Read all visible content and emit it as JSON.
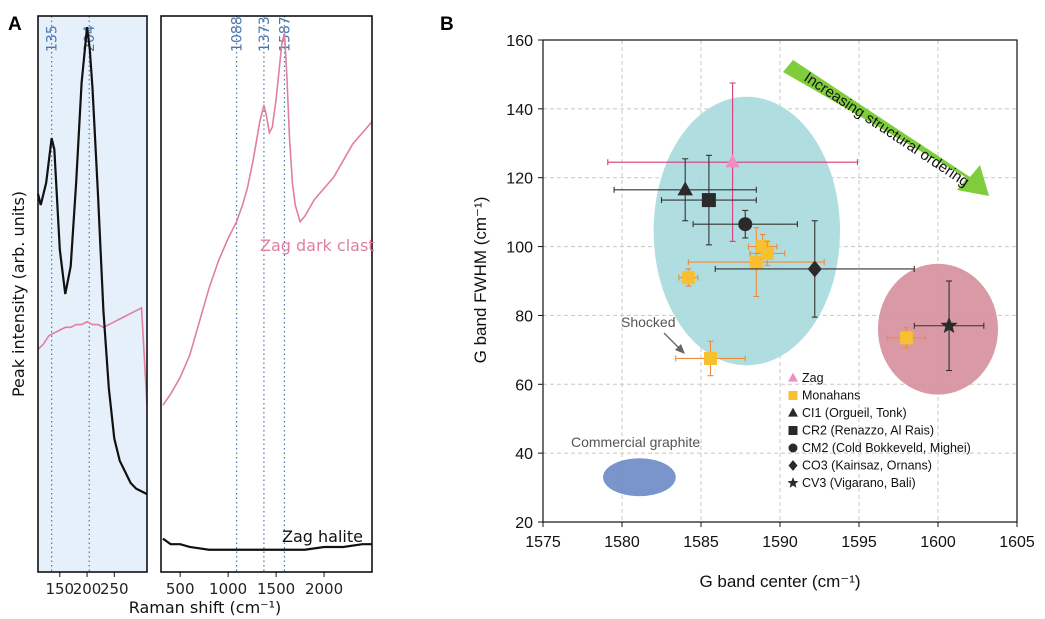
{
  "panel_a": {
    "label": "A",
    "ylabel": "Peak intensity (arb. units)",
    "xlabel": "Raman shift (cm⁻¹)",
    "left_ticks": [
      "150",
      "200",
      "250"
    ],
    "right_ticks": [
      "500",
      "1000",
      "1500",
      "2000"
    ],
    "peak_labels": [
      "135",
      "204",
      "1088",
      "1373",
      "1587"
    ],
    "annotation_dark": "Zag dark clast",
    "annotation_halite": "Zag halite"
  },
  "panel_b": {
    "label": "B",
    "ylabel": "G band FWHM (cm⁻¹)",
    "xlabel": "G band center (cm⁻¹)",
    "arrow_text": "Increasing structural ordering",
    "shocked_text": "Shocked",
    "graphite_text": "Commercial graphite"
  },
  "chart_data": [
    {
      "type": "line",
      "title": "",
      "ylabel": "Peak intensity (arb. units)",
      "xlabel": "Raman shift (cm⁻¹)",
      "subpanels": [
        {
          "xlim": [
            110,
            310
          ],
          "xticks": [
            150,
            200,
            250
          ],
          "shaded": true
        },
        {
          "xlim": [
            300,
            2500
          ],
          "xticks": [
            500,
            1000,
            1500,
            2000
          ],
          "shaded": false
        }
      ],
      "peak_markers": [
        135,
        204,
        1088,
        1373,
        1587
      ],
      "series": [
        {
          "name": "Zag dark clast",
          "color": "#e07fa0",
          "x": [
            110,
            120,
            130,
            140,
            150,
            160,
            170,
            180,
            190,
            200,
            210,
            220,
            230,
            240,
            250,
            260,
            270,
            280,
            290,
            300,
            310,
            320,
            400,
            500,
            600,
            700,
            800,
            900,
            1000,
            1088,
            1150,
            1200,
            1260,
            1300,
            1330,
            1373,
            1400,
            1430,
            1460,
            1500,
            1530,
            1560,
            1587,
            1610,
            1640,
            1670,
            1700,
            1750,
            1800,
            1900,
            2000,
            2100,
            2200,
            2300,
            2400,
            2500
          ],
          "y": [
            0.4,
            0.41,
            0.425,
            0.43,
            0.435,
            0.44,
            0.44,
            0.445,
            0.445,
            0.45,
            0.445,
            0.445,
            0.44,
            0.445,
            0.45,
            0.455,
            0.46,
            0.465,
            0.47,
            0.475,
            0.3,
            0.3,
            0.32,
            0.35,
            0.39,
            0.45,
            0.51,
            0.56,
            0.6,
            0.63,
            0.66,
            0.69,
            0.74,
            0.78,
            0.81,
            0.84,
            0.82,
            0.79,
            0.8,
            0.85,
            0.9,
            0.95,
            0.97,
            0.9,
            0.78,
            0.7,
            0.66,
            0.63,
            0.64,
            0.67,
            0.69,
            0.71,
            0.74,
            0.77,
            0.79,
            0.81
          ]
        },
        {
          "name": "Zag halite",
          "color": "#111111",
          "x": [
            110,
            115,
            125,
            135,
            140,
            150,
            160,
            170,
            180,
            190,
            200,
            205,
            210,
            220,
            230,
            240,
            250,
            260,
            270,
            280,
            290,
            300,
            310,
            320,
            400,
            500,
            600,
            800,
            1000,
            1200,
            1400,
            1600,
            1800,
            2000,
            2200,
            2400,
            2500
          ],
          "y": [
            0.68,
            0.66,
            0.7,
            0.78,
            0.76,
            0.58,
            0.5,
            0.55,
            0.7,
            0.88,
            0.98,
            0.94,
            0.87,
            0.68,
            0.47,
            0.33,
            0.24,
            0.2,
            0.18,
            0.16,
            0.15,
            0.145,
            0.14,
            0.06,
            0.05,
            0.05,
            0.045,
            0.04,
            0.04,
            0.04,
            0.04,
            0.04,
            0.04,
            0.045,
            0.045,
            0.05,
            0.05
          ]
        }
      ]
    },
    {
      "type": "scatter",
      "title": "",
      "xlabel": "G band center (cm⁻¹)",
      "ylabel": "G band FWHM (cm⁻¹)",
      "xlim": [
        1575,
        1605
      ],
      "ylim": [
        20,
        160
      ],
      "xticks": [
        1575,
        1580,
        1585,
        1590,
        1595,
        1600,
        1605
      ],
      "yticks": [
        20,
        40,
        60,
        80,
        100,
        120,
        140,
        160
      ],
      "grid": true,
      "legend_position": "bottom-center",
      "regions": [
        {
          "label": "",
          "cx": 1587.9,
          "cy": 104.5,
          "rx": 5.9,
          "ry": 39,
          "color": "#a7dadd"
        },
        {
          "label": "",
          "cx": 1600,
          "cy": 76,
          "rx": 3.8,
          "ry": 19,
          "color": "#d68f9b"
        },
        {
          "label": "Commercial graphite",
          "cx": 1581.1,
          "cy": 33,
          "rx": 2.3,
          "ry": 5.5,
          "color": "#6b88c6"
        }
      ],
      "series": [
        {
          "name": "Zag",
          "marker": "triangle",
          "color": "#ef8fbf",
          "error_color": "#d63c7a",
          "points": [
            {
              "x": 1587,
              "y": 124.5,
              "xerr": 7.9,
              "yerr": 23
            }
          ]
        },
        {
          "name": "Monahans",
          "marker": "square",
          "color": "#f8c02e",
          "error_color": "#ef8b3a",
          "points": [
            {
              "x": 1584.2,
              "y": 91,
              "xerr": 0.6,
              "yerr": 2.5
            },
            {
              "x": 1588.5,
              "y": 95.5,
              "xerr": 4.3,
              "yerr": 10
            },
            {
              "x": 1588.9,
              "y": 100,
              "xerr": 0.9,
              "yerr": 3.5
            },
            {
              "x": 1589.2,
              "y": 98,
              "xerr": 1.1,
              "yerr": 3.5
            },
            {
              "x": 1585.6,
              "y": 67.5,
              "xerr": 2.2,
              "yerr": 5
            },
            {
              "x": 1598,
              "y": 73.5,
              "xerr": 1.2,
              "yerr": 3
            }
          ]
        },
        {
          "name": "CI1 (Orgueil, Tonk)",
          "marker": "triangle",
          "color": "#2a2a2a",
          "error_color": "#333333",
          "points": [
            {
              "x": 1584,
              "y": 116.5,
              "xerr": 4.5,
              "yerr": 9
            }
          ]
        },
        {
          "name": "CR2 (Renazzo, Al Rais)",
          "marker": "square",
          "color": "#2a2a2a",
          "error_color": "#333333",
          "points": [
            {
              "x": 1585.5,
              "y": 113.5,
              "xerr": 3.0,
              "yerr": 13
            }
          ]
        },
        {
          "name": "CM2 (Cold Bokkeveld, Mighei)",
          "marker": "circle",
          "color": "#2a2a2a",
          "error_color": "#333333",
          "points": [
            {
              "x": 1587.8,
              "y": 106.5,
              "xerr": 3.3,
              "yerr": 4
            }
          ]
        },
        {
          "name": "CO3 (Kainsaz, Ornans)",
          "marker": "diamond",
          "color": "#2a2a2a",
          "error_color": "#333333",
          "points": [
            {
              "x": 1592.2,
              "y": 93.5,
              "xerr": 6.3,
              "yerr": 14
            }
          ]
        },
        {
          "name": "CV3 (Vigarano, Bali)",
          "marker": "star",
          "color": "#2a2a2a",
          "error_color": "#333333",
          "points": [
            {
              "x": 1600.7,
              "y": 77,
              "xerr": 2.2,
              "yerr": 13
            }
          ]
        }
      ]
    }
  ]
}
